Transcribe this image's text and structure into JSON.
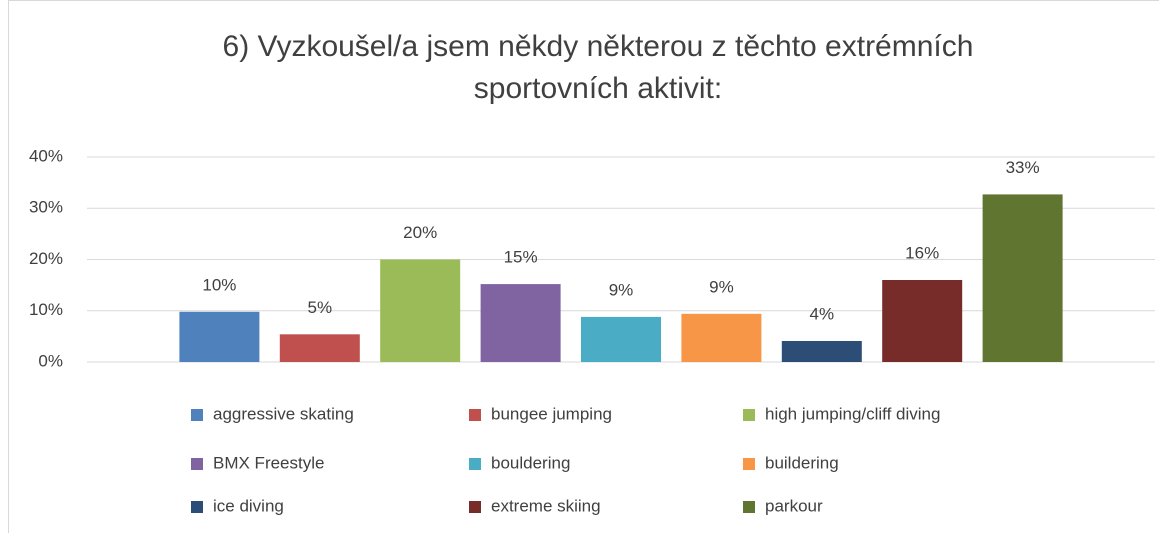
{
  "chart_data": {
    "type": "bar",
    "title": [
      "6) Vyzkoušel/a jsem někdy některou z těchto extrémních",
      "sportovních aktivit:"
    ],
    "series": [
      {
        "name": "aggressive skating",
        "color": "#4f81bd",
        "values": [
          9.8
        ],
        "value_labels": [
          "10%"
        ]
      },
      {
        "name": "bungee jumping",
        "color": "#c0504d",
        "values": [
          5.4
        ],
        "value_labels": [
          "5%"
        ]
      },
      {
        "name": "high jumping/cliff diving",
        "color": "#9bbb59",
        "values": [
          20
        ],
        "value_labels": [
          "20%"
        ]
      },
      {
        "name": "BMX Freestyle",
        "color": "#8064a2",
        "values": [
          15.2
        ],
        "value_labels": [
          "15%"
        ]
      },
      {
        "name": "bouldering",
        "color": "#4bacc6",
        "values": [
          8.8
        ],
        "value_labels": [
          "9%"
        ]
      },
      {
        "name": "buildering",
        "color": "#f79646",
        "values": [
          9.4
        ],
        "value_labels": [
          "9%"
        ]
      },
      {
        "name": "ice diving",
        "color": "#2c4d75",
        "values": [
          4.1
        ],
        "value_labels": [
          "4%"
        ]
      },
      {
        "name": "extreme skiing",
        "color": "#772c2a",
        "values": [
          16
        ],
        "value_labels": [
          "16%"
        ]
      },
      {
        "name": "parkour",
        "color": "#5f7530",
        "values": [
          32.7
        ],
        "value_labels": [
          "33%"
        ]
      }
    ],
    "ylim": [
      0,
      40
    ],
    "yticks": [
      {
        "value": 0,
        "label": "0%"
      },
      {
        "value": 10,
        "label": "10%"
      },
      {
        "value": 20,
        "label": "20%"
      },
      {
        "value": 30,
        "label": "30%"
      },
      {
        "value": 40,
        "label": "40%"
      }
    ],
    "grid": true,
    "legend": "bottom"
  }
}
